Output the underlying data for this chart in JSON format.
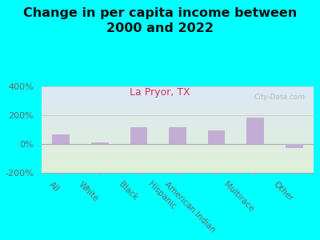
{
  "title": "Change in per capita income between\n2000 and 2022",
  "subtitle": "La Pryor, TX",
  "watermark": "City-Data.com",
  "categories": [
    "All",
    "White",
    "Black",
    "Hispanic",
    "American Indian",
    "Multirace",
    "Other"
  ],
  "values": [
    65,
    10,
    115,
    115,
    95,
    185,
    -30
  ],
  "bar_color": "#c2aed4",
  "title_fontsize": 11.5,
  "subtitle_color": "#cc3366",
  "subtitle_fontsize": 9,
  "title_color": "#111111",
  "background_color": "#00ffff",
  "plot_bg_top": "#dce8f5",
  "plot_bg_bottom": "#dff0d8",
  "ylim": [
    -200,
    400
  ],
  "yticks": [
    -200,
    0,
    200,
    400
  ],
  "ytick_labels": [
    "-200%",
    "0%",
    "200%",
    "400%"
  ],
  "xlabel_rotation": -45,
  "bar_width": 0.45,
  "grid_color": "#cccccc",
  "axis_color": "#aaaaaa",
  "ytick_fontsize": 8,
  "xtick_fontsize": 7.5
}
